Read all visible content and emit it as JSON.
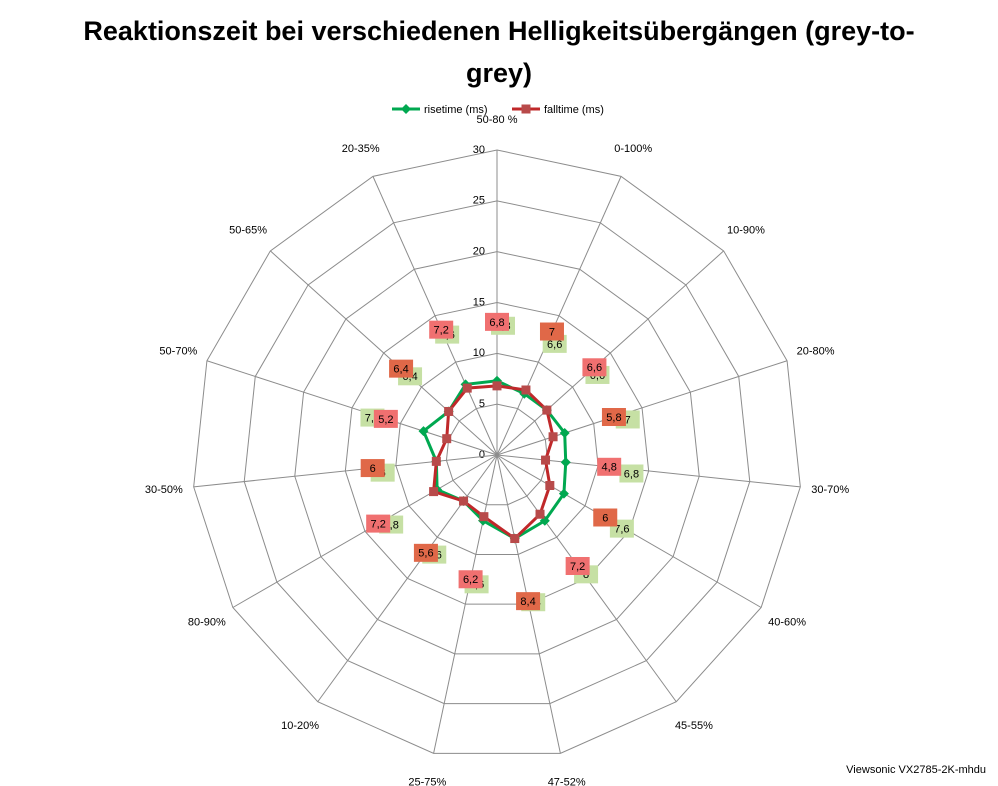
{
  "chart_data": {
    "type": "radar",
    "title": "Reaktionszeit bei verschiedenen Helligkeitsübergängen (grey-to-grey)",
    "footnote": "Viewsonic VX2785-2K-mhdu",
    "categories": [
      "50-80 %",
      "0-100%",
      "10-90%",
      "20-80%",
      "30-70%",
      "40-60%",
      "45-55%",
      "47-52%",
      "25-75%",
      "10-20%",
      "80-90%",
      "30-50%",
      "50-70%",
      "50-65%",
      "20-35%"
    ],
    "series": [
      {
        "name": "risetime (ms)",
        "color": "#00a850",
        "marker": "diamond",
        "values": [
          7.3,
          6.6,
          6.6,
          7,
          6.8,
          7.6,
          8,
          8.4,
          6.6,
          5.6,
          6.8,
          6,
          7.6,
          6.4,
          7.6
        ],
        "value_labels": [
          "7,3",
          "6,6",
          "6,6",
          "7",
          "6,8",
          "7,6",
          "8",
          "8,4",
          "6,6",
          "5,6",
          "6,8",
          "6",
          "7,6",
          "6,4",
          "7,6"
        ]
      },
      {
        "name": "falltime (ms)",
        "color": "#c0282a",
        "marker": "square",
        "values": [
          6.8,
          7,
          6.6,
          5.8,
          4.8,
          6,
          7.2,
          8.4,
          6.2,
          5.6,
          7.2,
          6,
          5.2,
          6.4,
          7.2
        ],
        "value_labels": [
          "6,8",
          "7",
          "6,6",
          "5,8",
          "4,8",
          "6",
          "7,2",
          "8,4",
          "6,2",
          "5,6",
          "7,2",
          "6",
          "5,2",
          "6,4",
          "7,2"
        ]
      }
    ],
    "rlim": [
      0,
      30
    ],
    "rticks": [
      0,
      5,
      10,
      15,
      20,
      25,
      30
    ],
    "grid": true,
    "legend": "top"
  }
}
